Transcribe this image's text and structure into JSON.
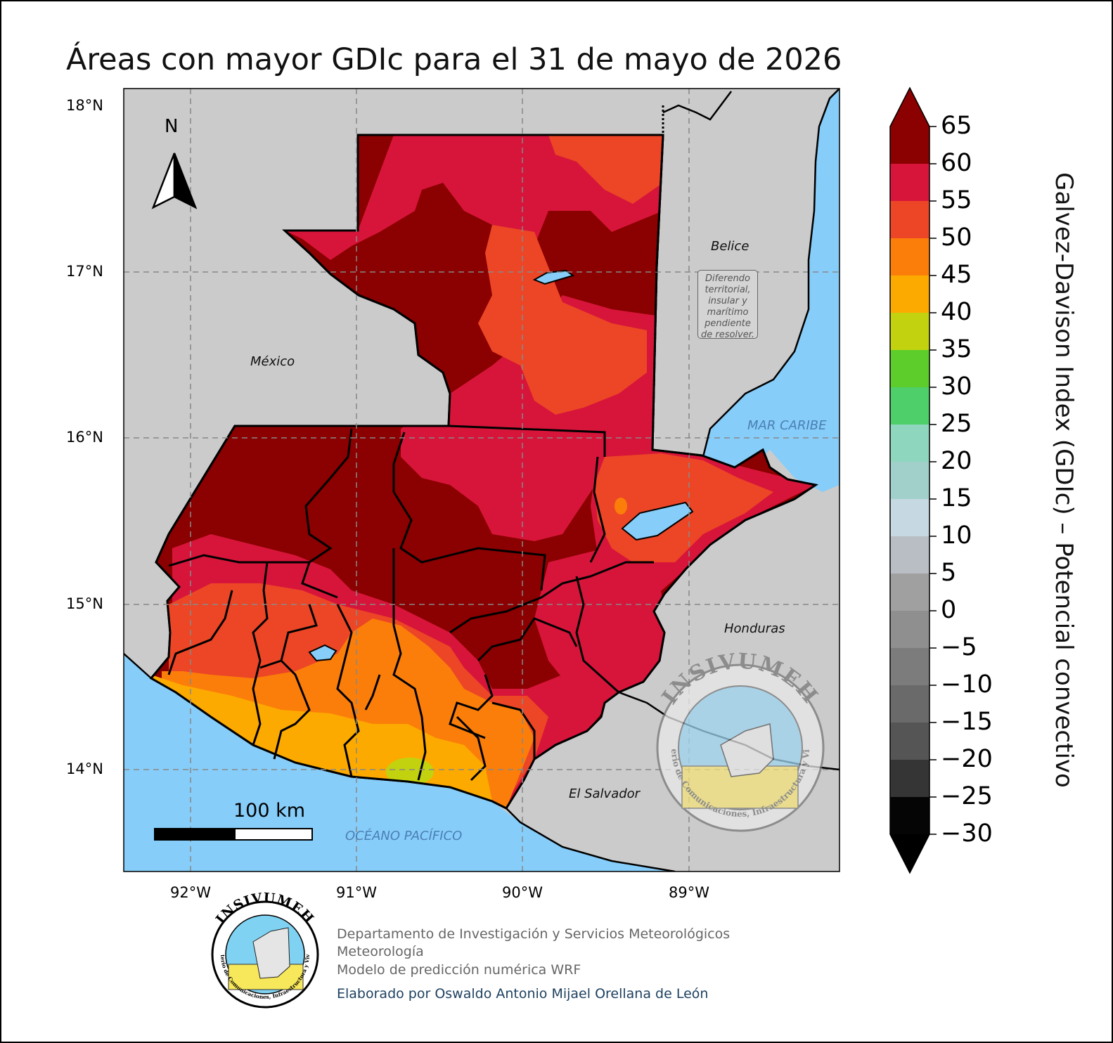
{
  "title": "Áreas con mayor GDIc para el 31 de mayo de 2026",
  "axes": {
    "lat_ticks": [
      "18°N",
      "17°N",
      "16°N",
      "15°N",
      "14°N"
    ],
    "lon_ticks": [
      "92°W",
      "91°W",
      "90°W",
      "89°W"
    ]
  },
  "labels": {
    "mexico": "México",
    "belize": "Belice",
    "honduras": "Honduras",
    "el_salvador": "El Salvador",
    "caribbean": "MAR CARIBE",
    "pacific": "OCÉANO PACÍFICO",
    "dispute": [
      "Diferendo",
      "territorial,",
      "insular y",
      "marítimo",
      "pendiente",
      "de resolver."
    ]
  },
  "north_arrow": "N",
  "scale_bar": "100 km",
  "colorbar": {
    "title": "Galvez-Davison Index (GDIc) – Potencial convectivo",
    "ticks": [
      "65",
      "60",
      "55",
      "50",
      "45",
      "40",
      "35",
      "30",
      "25",
      "20",
      "15",
      "10",
      "5",
      "0",
      "−5",
      "−10",
      "−15",
      "−20",
      "−25",
      "−30"
    ],
    "colors": [
      "#8b0000",
      "#d7153a",
      "#ec4626",
      "#fb7e0a",
      "#fdaa00",
      "#c3d20e",
      "#5ccd2b",
      "#4ecf6a",
      "#8fd6be",
      "#a1d0ca",
      "#c6d9e3",
      "#b9bec5",
      "#a0a0a0",
      "#8f8f8f",
      "#7c7c7c",
      "#6a6a6a",
      "#555555",
      "#353535",
      "#050505"
    ]
  },
  "logo": {
    "name": "INSIVUMEH",
    "ring": "Ministerio de Comunicaciones, Infraestructura y Vivienda"
  },
  "footer": {
    "line1": "Departamento de Investigación y Servicios Meteorológicos",
    "line2": "Meteorología",
    "line3": "Modelo de predicción numérica WRF",
    "author": "Elaborado por Oswaldo Antonio Mijael Orellana de León"
  }
}
